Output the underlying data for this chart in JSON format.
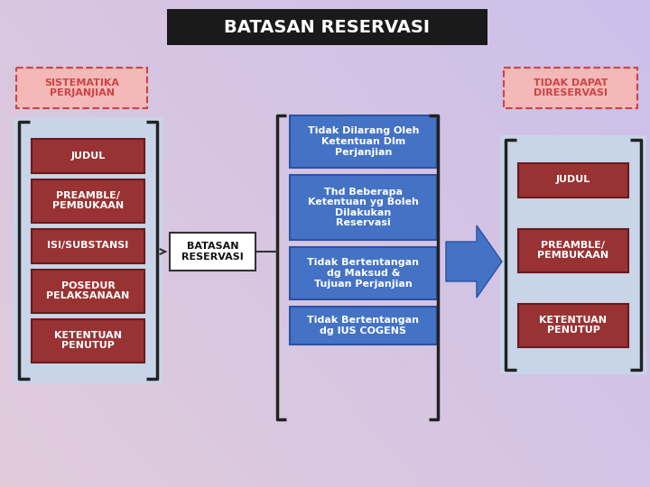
{
  "title": "BATASAN RESERVASI",
  "title_bg": "#1a1a1a",
  "title_color": "#ffffff",
  "left_label": "SISTEMATIKA\nPERJANJIAN",
  "left_label_bg": "#f5b8b8",
  "left_label_border": "#cc4444",
  "right_label": "TIDAK DAPAT\nDIRESERVASI",
  "right_label_bg": "#f5b8b8",
  "right_label_border": "#cc4444",
  "center_label": "BATASAN\nRESERVASI",
  "left_items": [
    "JUDUL",
    "PREAMBLE/\nPEMBUKAAN",
    "ISI/SUBSTANSI",
    "POSEDUR\nPELAKSANAAN",
    "KETENTUAN\nPENUTUP"
  ],
  "right_items": [
    "JUDUL",
    "PREAMBLE/\nPEMBUKAAN",
    "KETENTUAN\nPENUTUP"
  ],
  "item_bg": "#993333",
  "item_color": "#ffffff",
  "middle_items": [
    "Tidak Dilarang Oleh\nKetentuan Dlm\nPerjanjian",
    "Thd Beberapa\nKetentuan yg Boleh\nDilakukan\nReservasi",
    "Tidak Bertentangan\ndg Maksud &\nTujuan Perjanjian",
    "Tidak Bertentangan\ndg IUS COGENS"
  ],
  "middle_bg": "#4472c4",
  "middle_color": "#ffffff"
}
